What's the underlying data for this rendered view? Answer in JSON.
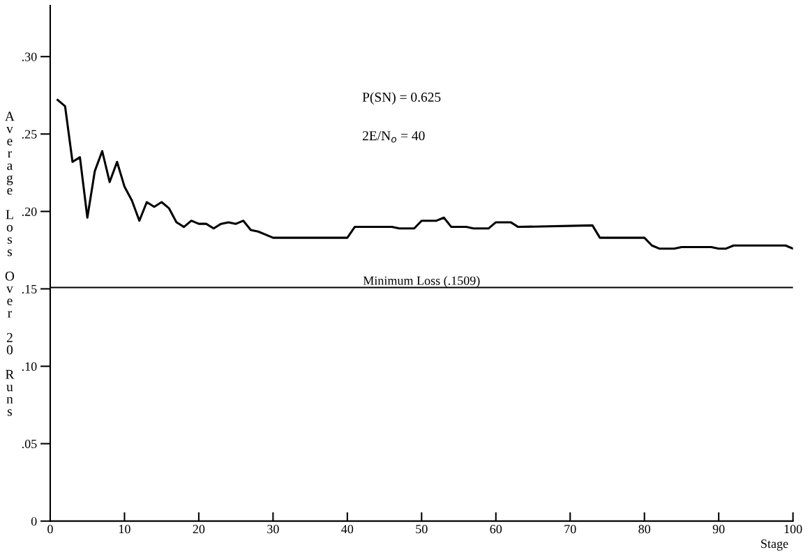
{
  "chart_data": {
    "type": "line",
    "xlabel": "Stage",
    "ylabel": "Average Loss Over 20 Runs",
    "annotations": [
      "P(SN) = 0.625",
      "2E/N$_{o}$ = 40"
    ],
    "x": [
      1,
      2,
      3,
      4,
      5,
      6,
      7,
      8,
      9,
      10,
      11,
      12,
      13,
      14,
      15,
      16,
      17,
      18,
      19,
      20,
      21,
      22,
      23,
      24,
      25,
      26,
      27,
      28,
      29,
      30,
      40,
      41,
      46,
      47,
      49,
      50,
      52,
      53,
      54,
      56,
      57,
      59,
      60,
      62,
      63,
      73,
      74,
      80,
      81,
      82,
      84,
      85,
      89,
      90,
      91,
      92,
      99,
      100
    ],
    "series": [
      {
        "color": "#000000",
        "values": [
          0.272,
          0.268,
          0.232,
          0.235,
          0.196,
          0.226,
          0.239,
          0.219,
          0.232,
          0.216,
          0.207,
          0.194,
          0.206,
          0.203,
          0.206,
          0.202,
          0.193,
          0.19,
          0.194,
          0.192,
          0.192,
          0.189,
          0.192,
          0.193,
          0.192,
          0.194,
          0.188,
          0.187,
          0.185,
          0.183,
          0.183,
          0.19,
          0.19,
          0.189,
          0.189,
          0.194,
          0.194,
          0.196,
          0.19,
          0.19,
          0.189,
          0.189,
          0.193,
          0.193,
          0.19,
          0.191,
          0.183,
          0.183,
          0.178,
          0.176,
          0.176,
          0.177,
          0.177,
          0.176,
          0.176,
          0.178,
          0.178,
          0.176
        ]
      }
    ],
    "xlim": [
      0,
      100
    ],
    "ylim": [
      0,
      0.333
    ],
    "xticks": [
      0,
      10,
      20,
      30,
      40,
      50,
      60,
      70,
      80,
      90,
      100
    ],
    "yticks": [
      {
        "value": 0,
        "label": "0"
      },
      {
        "value": 0.05,
        "label": ".05"
      },
      {
        "value": 0.1,
        "label": ".10"
      },
      {
        "value": 0.15,
        "label": ".15"
      },
      {
        "value": 0.2,
        "label": ".20"
      },
      {
        "value": 0.25,
        "label": ".25"
      },
      {
        "value": 0.3,
        "label": ".30"
      }
    ],
    "ref_lines": [
      {
        "axis": "y",
        "value": 0.1509,
        "label": "Minimum Loss (.1509)",
        "color": "#000000",
        "line_style": "solid"
      }
    ],
    "grid": false,
    "legend": false,
    "marker": "none",
    "line_style": "solid"
  }
}
